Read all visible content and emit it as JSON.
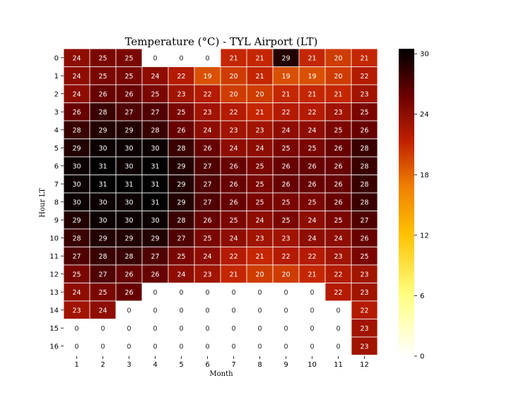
{
  "chart_data": {
    "type": "heatmap",
    "title": "Temperature (°C) - TYL Airport (LT)",
    "xlabel": "Month",
    "ylabel": "Hour LT",
    "x_categories": [
      "1",
      "2",
      "3",
      "4",
      "5",
      "6",
      "7",
      "8",
      "9",
      "10",
      "11",
      "12"
    ],
    "y_categories": [
      "0",
      "1",
      "2",
      "3",
      "4",
      "5",
      "6",
      "7",
      "8",
      "9",
      "10",
      "11",
      "12",
      "13",
      "14",
      "15",
      "16"
    ],
    "values": [
      [
        24,
        25,
        25,
        0,
        0,
        0,
        21,
        21,
        29,
        21,
        20,
        21
      ],
      [
        24,
        25,
        25,
        24,
        22,
        19,
        20,
        21,
        19,
        19,
        20,
        22
      ],
      [
        24,
        26,
        26,
        25,
        23,
        22,
        20,
        20,
        21,
        21,
        21,
        23
      ],
      [
        26,
        28,
        27,
        27,
        25,
        23,
        22,
        21,
        22,
        22,
        23,
        25
      ],
      [
        28,
        29,
        29,
        28,
        26,
        24,
        23,
        23,
        24,
        24,
        25,
        26
      ],
      [
        29,
        30,
        30,
        30,
        28,
        26,
        24,
        24,
        25,
        25,
        26,
        28
      ],
      [
        30,
        31,
        30,
        31,
        29,
        27,
        26,
        25,
        26,
        26,
        26,
        28
      ],
      [
        30,
        31,
        31,
        31,
        29,
        27,
        26,
        25,
        26,
        26,
        26,
        28
      ],
      [
        30,
        30,
        30,
        31,
        29,
        27,
        26,
        25,
        25,
        25,
        26,
        28
      ],
      [
        29,
        30,
        30,
        30,
        28,
        26,
        25,
        24,
        25,
        24,
        25,
        27
      ],
      [
        28,
        29,
        29,
        29,
        27,
        25,
        24,
        23,
        23,
        24,
        24,
        26
      ],
      [
        27,
        28,
        28,
        27,
        25,
        24,
        22,
        21,
        22,
        22,
        23,
        25
      ],
      [
        25,
        27,
        26,
        26,
        24,
        23,
        21,
        20,
        20,
        21,
        22,
        23
      ],
      [
        24,
        25,
        26,
        0,
        0,
        0,
        0,
        0,
        0,
        0,
        22,
        23
      ],
      [
        23,
        24,
        0,
        0,
        0,
        0,
        0,
        0,
        0,
        0,
        0,
        22
      ],
      [
        0,
        0,
        0,
        0,
        0,
        0,
        0,
        0,
        0,
        0,
        0,
        23
      ],
      [
        0,
        0,
        0,
        0,
        0,
        0,
        0,
        0,
        0,
        0,
        0,
        23
      ]
    ],
    "colorscale": "afmhot_r",
    "vmin": 0,
    "vmax": 30.5,
    "colorbar_ticks": [
      "0",
      "6",
      "12",
      "18",
      "24",
      "30"
    ],
    "grid": false
  }
}
